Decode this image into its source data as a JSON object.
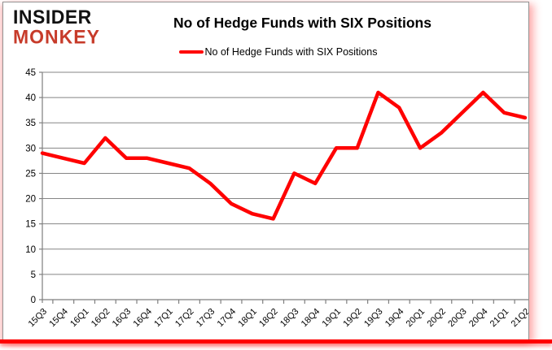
{
  "logo": {
    "line1": "INSIDER",
    "line2": "MONKEY",
    "line1_color": "#111111",
    "line2_color": "#c73b2a"
  },
  "header": {
    "title": "No of Hedge Funds with SIX Positions"
  },
  "legend": {
    "label": "No of Hedge Funds with SIX Positions",
    "marker_color": "#ff0000"
  },
  "chart_data": {
    "type": "line",
    "title": "No of Hedge Funds with SIX Positions",
    "categories": [
      "15Q3",
      "15Q4",
      "16Q1",
      "16Q2",
      "16Q3",
      "16Q4",
      "17Q1",
      "17Q2",
      "17Q3",
      "17Q4",
      "18Q1",
      "18Q2",
      "18Q3",
      "18Q4",
      "19Q1",
      "19Q2",
      "19Q3",
      "19Q4",
      "20Q1",
      "20Q2",
      "20Q3",
      "20Q4",
      "21Q1",
      "21Q2"
    ],
    "series": [
      {
        "name": "No of Hedge Funds with SIX Positions",
        "color": "#ff0000",
        "values": [
          29,
          28,
          27,
          32,
          28,
          28,
          27,
          26,
          23,
          19,
          17,
          16,
          25,
          23,
          30,
          30,
          41,
          38,
          30,
          33,
          37,
          41,
          37,
          36
        ]
      }
    ],
    "ylim": [
      0,
      45
    ],
    "yticks": [
      0,
      5,
      10,
      15,
      20,
      25,
      30,
      35,
      40,
      45
    ],
    "grid": "horizontal-only",
    "gridline_color": "#858585",
    "axis_color": "#7f7f7f",
    "tick_label_color": "#000000",
    "legend_position": "top-center",
    "x_label_rotation": -45
  },
  "frame": {
    "bottom_bar_color": "#ff0000",
    "border_color": "#919191",
    "background": "#ffffff"
  }
}
